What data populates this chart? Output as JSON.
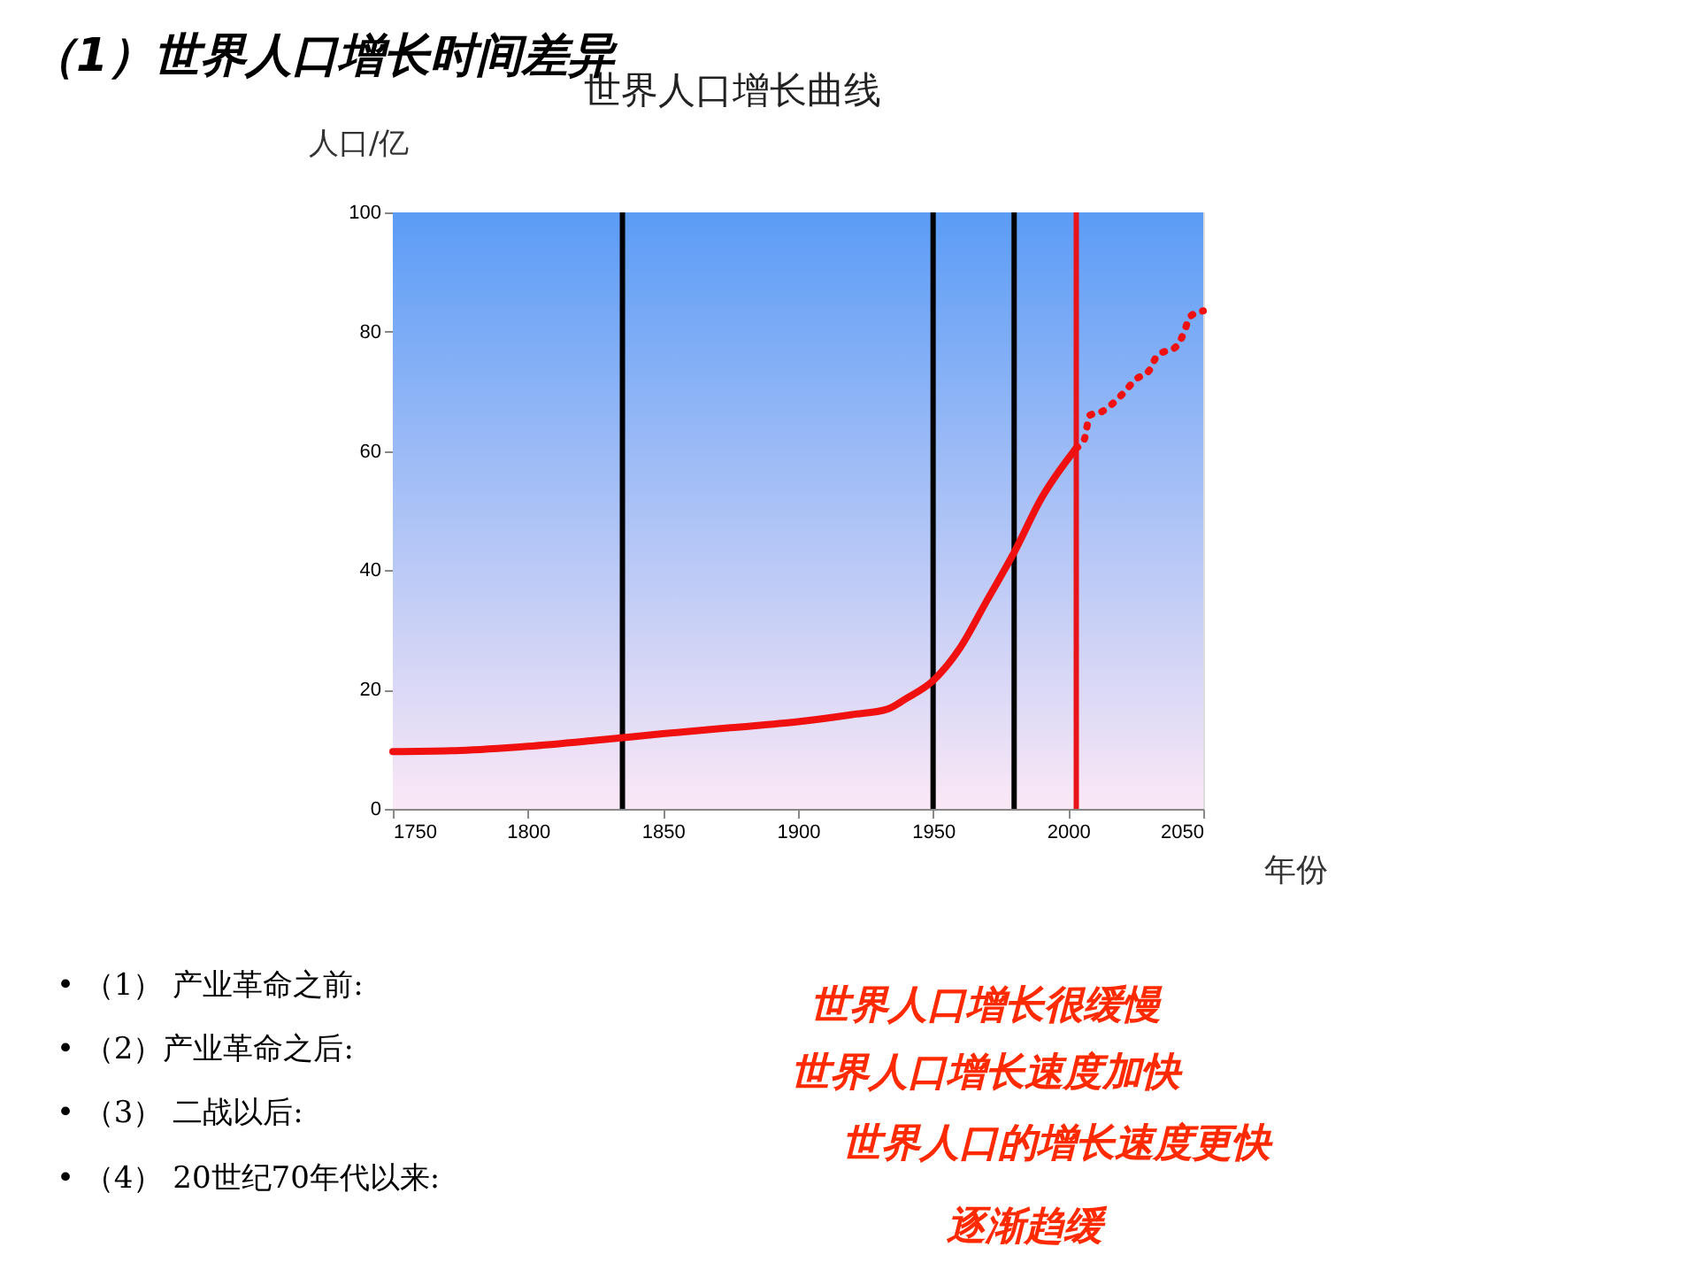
{
  "chart_data": {
    "type": "line",
    "title": "（1）世界人口增长时间差异",
    "subtitle": "世界人口增长曲线",
    "ylabel": "人口/亿",
    "xlabel": "年份",
    "xlim": [
      1750,
      2050
    ],
    "xticks": [
      1750,
      1800,
      1850,
      1900,
      1950,
      2000,
      2050
    ],
    "ylim": [
      0,
      100
    ],
    "yticks": [
      0,
      20,
      40,
      60,
      80,
      100
    ],
    "series": [
      {
        "color": "#f01010",
        "line_style": "solid",
        "x": [
          1750,
          1775,
          1800,
          1825,
          1850,
          1875,
          1900,
          1920,
          1933,
          1940,
          1950,
          1960,
          1970,
          1980,
          1990,
          2003
        ],
        "values": [
          9.6,
          9.8,
          10.5,
          11.5,
          12.6,
          13.6,
          14.6,
          15.8,
          16.7,
          18.5,
          21.5,
          27,
          35,
          43,
          52,
          60.5
        ]
      },
      {
        "color": "#f01010",
        "line_style": "dotted",
        "x": [
          2003,
          2006,
          2008,
          2012,
          2020,
          2025,
          2030,
          2033,
          2040,
          2043,
          2045,
          2050
        ],
        "values": [
          60.5,
          62,
          66,
          66.5,
          69.5,
          72,
          73.5,
          76,
          77.5,
          80,
          82.5,
          83.5
        ]
      }
    ],
    "ref_lines": [
      {
        "axis": "x",
        "value": 1835,
        "color": "#000000"
      },
      {
        "axis": "x",
        "value": 1950,
        "color": "#000000"
      },
      {
        "axis": "x",
        "value": 1980,
        "color": "#000000"
      },
      {
        "axis": "x",
        "value": 2003,
        "color": "#e8141a"
      }
    ],
    "annotations": [
      "•  （1）  产业革命之前:",
      "•  （2）产业革命之后:",
      "•  （3）  二战以后:",
      "•  （4）    20世纪70年代以来:",
      "世界人口增长很缓慢",
      "世界人口增长速度加快",
      "世界人口的增长速度更快",
      "逐渐趋缓"
    ]
  }
}
